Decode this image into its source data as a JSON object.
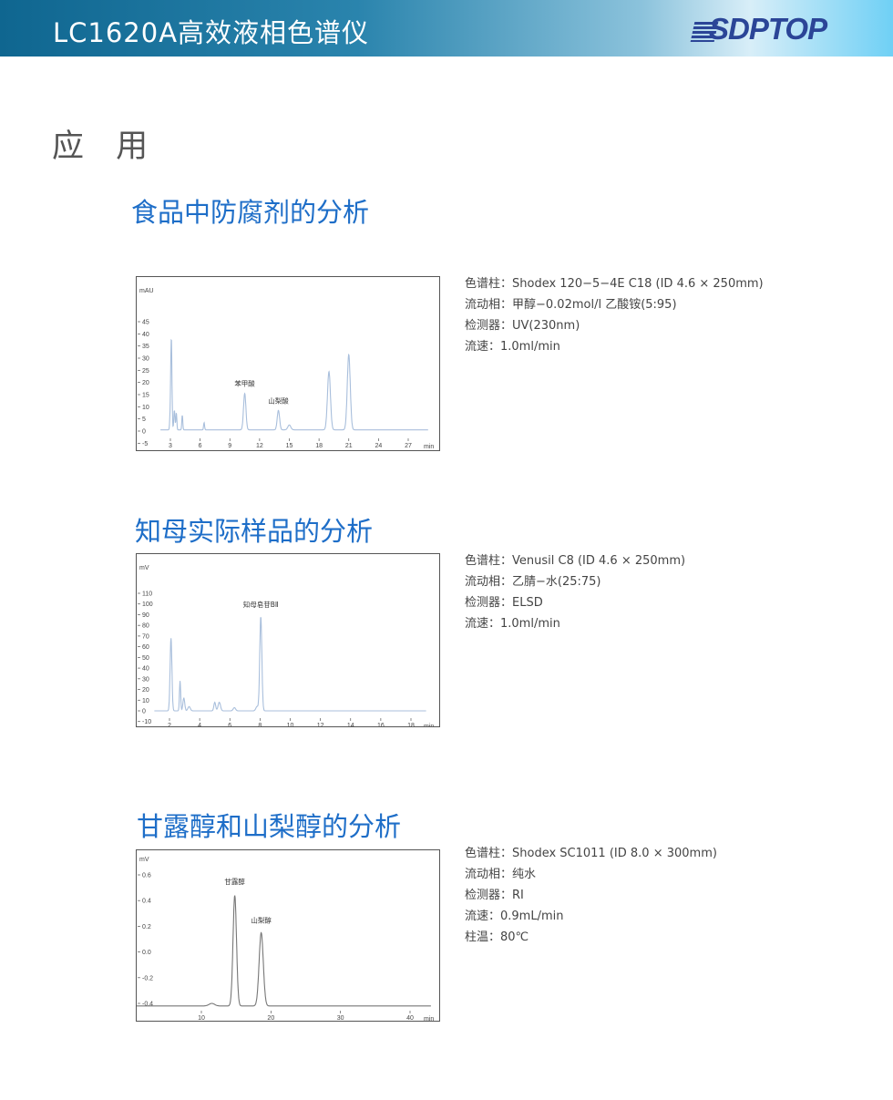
{
  "header": {
    "title": "LC1620A高效液相色谱仪",
    "logo_text": "SDPTOP",
    "colors": {
      "banner_start": "#0f6690",
      "banner_end": "#6fd0f5",
      "logo": "#2b4597"
    }
  },
  "section_title": "应 用",
  "applications": [
    {
      "title": "食品中防腐剂的分析",
      "specs": [
        "色谱柱：Shodex 120−5−4E C18  (ID 4.6 × 250mm)",
        "流动相：甲醇−0.02mol/l 乙酸铵(5:95)",
        "检测器：UV(230nm)",
        "流速：1.0ml/min"
      ]
    },
    {
      "title": "知母实际样品的分析",
      "specs": [
        "色谱柱：Venusil C8  (ID 4.6 × 250mm)",
        "流动相：乙腈−水(25:75)",
        "检测器：ELSD",
        "流速：1.0ml/min"
      ]
    },
    {
      "title": "甘露醇和山梨醇的分析",
      "specs": [
        "色谱柱：Shodex SC1011 (ID 8.0 × 300mm)",
        "流动相：纯水",
        "检测器：RI",
        "流速：0.9mL/min",
        "柱温：80℃"
      ]
    }
  ],
  "chart_data": [
    {
      "type": "line",
      "ylabel": "mAU",
      "xlabel": "min",
      "color": "#a9bfdc",
      "xlim": [
        2,
        29
      ],
      "ylim": [
        -5,
        50
      ],
      "xticks": [
        3,
        6,
        9,
        12,
        15,
        18,
        21,
        24,
        27
      ],
      "yticks": [
        -5,
        0,
        5,
        10,
        15,
        20,
        25,
        30,
        35,
        40,
        45
      ],
      "baseline": 0.5,
      "peaks": [
        {
          "t": 3.0,
          "h": 7
        },
        {
          "t": 3.1,
          "h": 36
        },
        {
          "t": 3.4,
          "h": 8
        },
        {
          "t": 3.6,
          "h": 7
        },
        {
          "t": 4.2,
          "h": 6
        },
        {
          "t": 6.4,
          "h": 3
        },
        {
          "t": 10.5,
          "h": 15
        },
        {
          "t": 13.9,
          "h": 8
        },
        {
          "t": 15.0,
          "h": 2
        },
        {
          "t": 19.0,
          "h": 24
        },
        {
          "t": 21.0,
          "h": 31
        }
      ],
      "annotations": [
        {
          "text": "苯甲酸",
          "t": 10.5,
          "y": 17
        },
        {
          "text": "山梨酸",
          "t": 13.9,
          "y": 10
        }
      ]
    },
    {
      "type": "line",
      "ylabel": "mV",
      "xlabel": "min",
      "color": "#a9bfdc",
      "xlim": [
        1,
        19
      ],
      "ylim": [
        -10,
        125
      ],
      "xticks": [
        2,
        4,
        6,
        8,
        10,
        12,
        14,
        16,
        18
      ],
      "yticks": [
        -10,
        0,
        10,
        20,
        30,
        40,
        50,
        60,
        70,
        80,
        90,
        100,
        110
      ],
      "baseline": 0,
      "peaks": [
        {
          "t": 2.1,
          "h": 68
        },
        {
          "t": 2.7,
          "h": 28
        },
        {
          "t": 2.95,
          "h": 12
        },
        {
          "t": 3.3,
          "h": 4
        },
        {
          "t": 5.0,
          "h": 8
        },
        {
          "t": 5.3,
          "h": 8
        },
        {
          "t": 6.3,
          "h": 3
        },
        {
          "t": 7.8,
          "h": 4
        },
        {
          "t": 8.05,
          "h": 88
        }
      ],
      "annotations": [
        {
          "text": "知母皂苷BⅡ",
          "t": 8.05,
          "y": 94
        }
      ]
    },
    {
      "type": "line",
      "ylabel": "mV",
      "xlabel": "min",
      "color": "#777777",
      "xlim": [
        0.5,
        43
      ],
      "ylim": [
        -0.45,
        0.7
      ],
      "xticks": [
        10,
        20,
        30,
        40
      ],
      "yticks": [
        -0.4,
        -0.2,
        0.0,
        0.2,
        0.4,
        0.6
      ],
      "baseline": -0.42,
      "peaks": [
        {
          "t": 11.5,
          "h": 0.02
        },
        {
          "t": 14.8,
          "h": 0.86
        },
        {
          "t": 18.6,
          "h": 0.57
        }
      ],
      "annotations": [
        {
          "text": "甘露醇",
          "t": 14.8,
          "y": 0.5
        },
        {
          "text": "山梨醇",
          "t": 18.6,
          "y": 0.2
        }
      ]
    }
  ]
}
